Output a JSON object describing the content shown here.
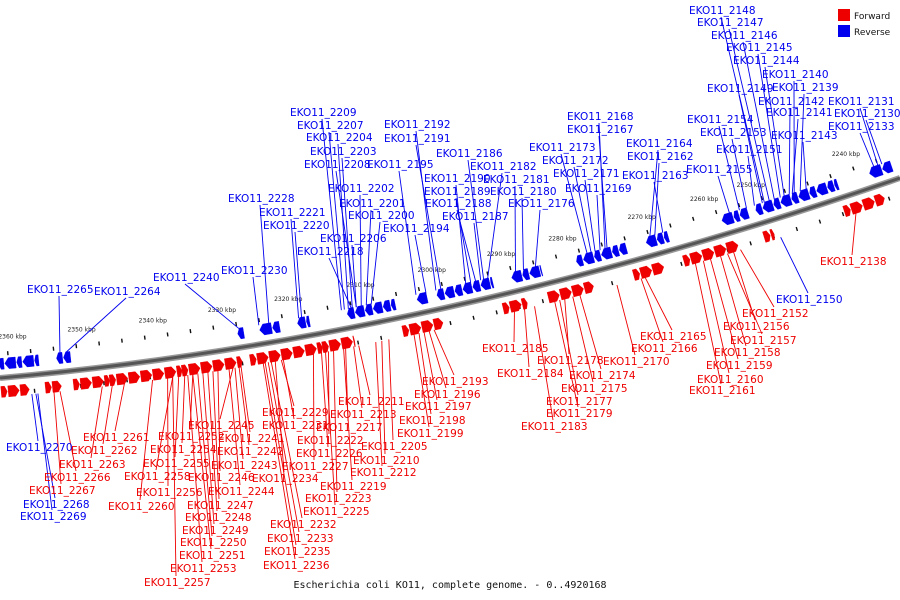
{
  "caption": "Escherichia coli KO11, complete genome. - 0..4920168",
  "legend": {
    "forward_label": "Forward",
    "reverse_label": "Reverse",
    "forward_color": "#ee0000",
    "reverse_color": "#0000ee"
  },
  "axis_ticks": [
    "2240 kbp",
    "2250 kbp",
    "2260 kbp",
    "2270 kbp",
    "2280 kbp",
    "2290 kbp",
    "2300 kbp",
    "2310 kbp",
    "2320 kbp",
    "2330 kbp",
    "2340 kbp",
    "2350 kbp",
    "2360 kbp"
  ],
  "reverse_genes": [
    "EKO11_2148",
    "EKO11_2147",
    "EKO11_2146",
    "EKO11_2145",
    "EKO11_2144",
    "EKO11_2140",
    "EKO11_2149",
    "EKO11_2139",
    "EKO11_2142",
    "EKO11_2131",
    "EKO11_2141",
    "EKO11_2130",
    "EKO11_2154",
    "EKO11_2133",
    "EKO11_2153",
    "EKO11_2143",
    "EKO11_2151",
    "EKO11_2155",
    "EKO11_2168",
    "EKO11_2167",
    "EKO11_2173",
    "EKO11_2164",
    "EKO11_2172",
    "EKO11_2162",
    "EKO11_2171",
    "EKO11_2163",
    "EKO11_2169",
    "EKO11_2209",
    "EKO11_2192",
    "EKO11_2207",
    "EKO11_2191",
    "EKO11_2204",
    "EKO11_2203",
    "EKO11_2186",
    "EKO11_2208",
    "EKO11_2195",
    "EKO11_2182",
    "EKO11_2190",
    "EKO11_2181",
    "EKO11_2202",
    "EKO11_2189",
    "EKO11_2180",
    "EKO11_2201",
    "EKO11_2188",
    "EKO11_2176",
    "EKO11_2200",
    "EKO11_2187",
    "EKO11_2194",
    "EKO11_2206",
    "EKO11_2218",
    "EKO11_2228",
    "EKO11_2221",
    "EKO11_2220",
    "EKO11_2230",
    "EKO11_2240",
    "EKO11_2265",
    "EKO11_2264",
    "EKO11_2150",
    "EKO11_2270",
    "EKO11_2268",
    "EKO11_2269"
  ],
  "forward_genes": [
    "EKO11_2138",
    "EKO11_2152",
    "EKO11_2156",
    "EKO11_2157",
    "EKO11_2158",
    "EKO11_2165",
    "EKO11_2166",
    "EKO11_2159",
    "EKO11_2160",
    "EKO11_2161",
    "EKO11_2170",
    "EKO11_2185",
    "EKO11_2178",
    "EKO11_2184",
    "EKO11_2174",
    "EKO11_2175",
    "EKO11_2177",
    "EKO11_2179",
    "EKO11_2183",
    "EKO11_2193",
    "EKO11_2196",
    "EKO11_2197",
    "EKO11_2198",
    "EKO11_2199",
    "EKO11_2211",
    "EKO11_2213",
    "EKO11_2217",
    "EKO11_2205",
    "EKO11_2210",
    "EKO11_2212",
    "EKO11_2219",
    "EKO11_2222",
    "EKO11_2226",
    "EKO11_2227",
    "EKO11_2223",
    "EKO11_2225",
    "EKO11_2229",
    "EKO11_2231",
    "EKO11_2234",
    "EKO11_2232",
    "EKO11_2233",
    "EKO11_2235",
    "EKO11_2236",
    "EKO11_2245",
    "EKO11_2241",
    "EKO11_2242",
    "EKO11_2243",
    "EKO11_2244",
    "EKO11_2246",
    "EKO11_2247",
    "EKO11_2248",
    "EKO11_2249",
    "EKO11_2250",
    "EKO11_2251",
    "EKO11_2253",
    "EKO11_2257",
    "EKO11_2252",
    "EKO11_2254",
    "EKO11_2255",
    "EKO11_2258",
    "EKO11_2256",
    "EKO11_2260",
    "EKO11_2261",
    "EKO11_2262",
    "EKO11_2263",
    "EKO11_2266",
    "EKO11_2267"
  ]
}
